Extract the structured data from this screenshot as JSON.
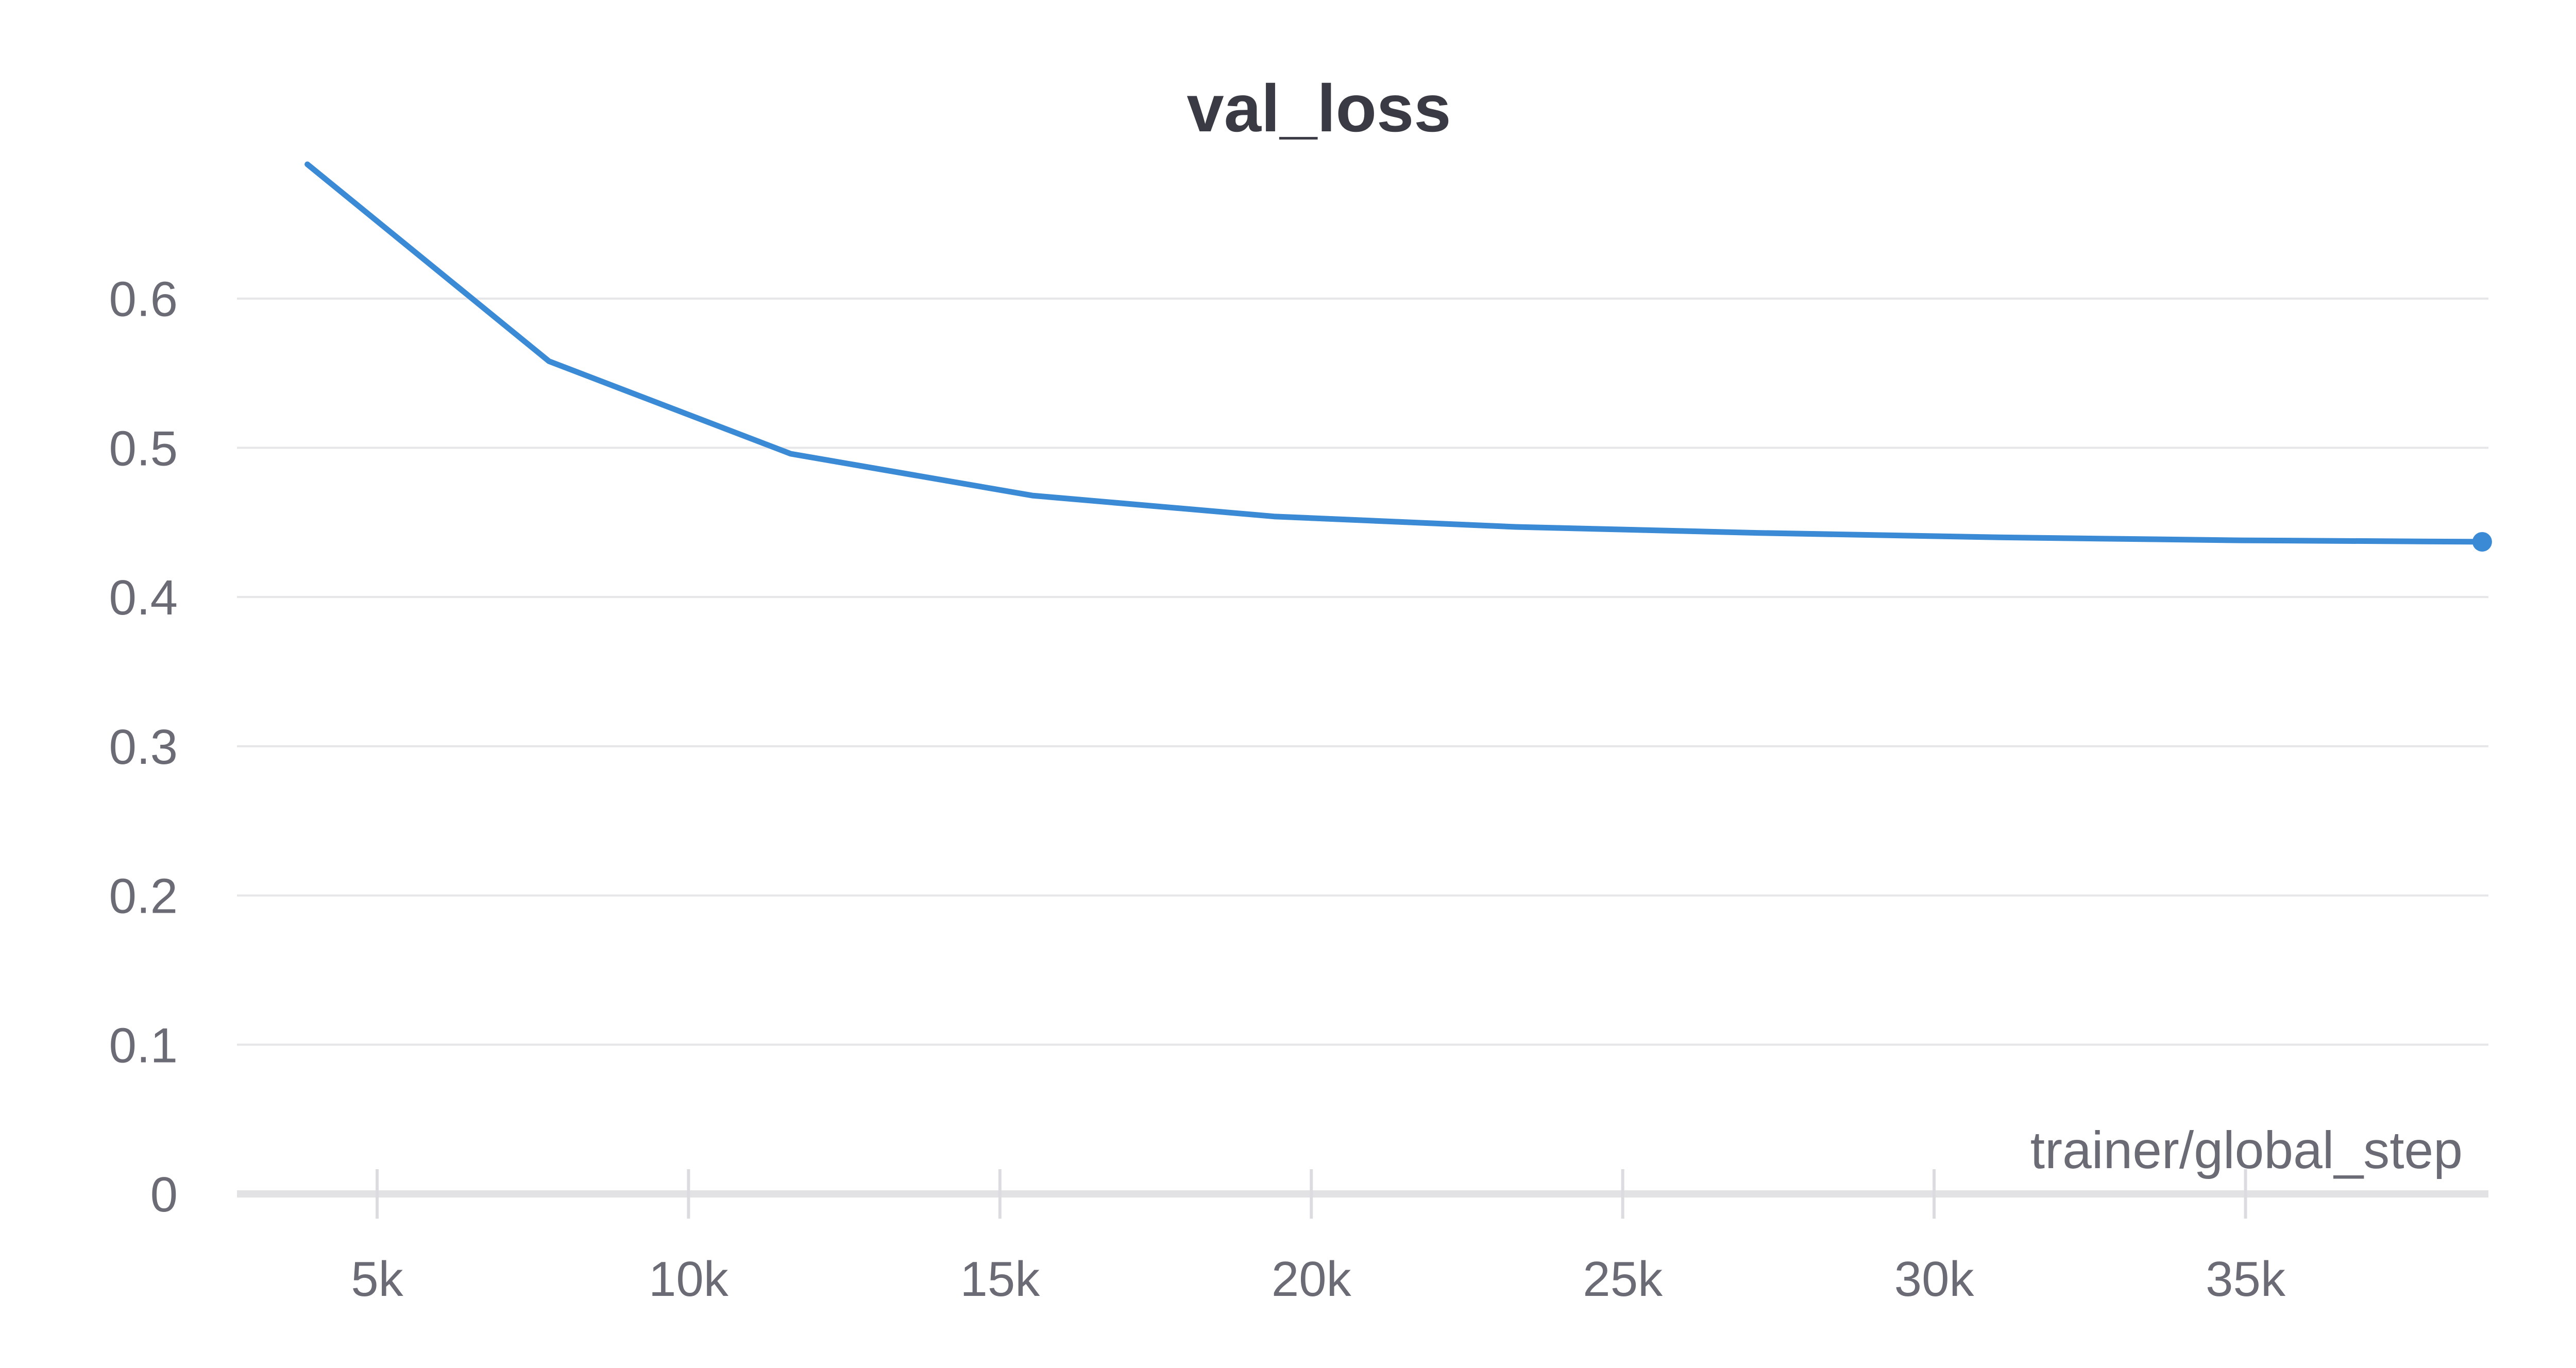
{
  "chart_data": {
    "type": "line",
    "title": "val_loss",
    "xlabel": "trainer/global_step",
    "ylabel": "",
    "xlim": [
      2750,
      38900
    ],
    "ylim": [
      0,
      0.7
    ],
    "grid": true,
    "x_ticks": [
      5000,
      10000,
      15000,
      20000,
      25000,
      30000,
      35000
    ],
    "x_tick_labels": [
      "5k",
      "10k",
      "15k",
      "20k",
      "25k",
      "30k",
      "35k"
    ],
    "y_ticks": [
      0,
      0.1,
      0.2,
      0.3,
      0.4,
      0.5,
      0.6
    ],
    "y_tick_labels": [
      "0",
      "0.1",
      "0.2",
      "0.3",
      "0.4",
      "0.5",
      "0.6"
    ],
    "series": [
      {
        "color": "#3b8ad6",
        "x": [
          3880,
          7760,
          11640,
          15520,
          19400,
          23280,
          27160,
          31040,
          34920,
          38800
        ],
        "y": [
          0.69,
          0.558,
          0.496,
          0.468,
          0.454,
          0.447,
          0.443,
          0.44,
          0.438,
          0.437
        ]
      }
    ]
  }
}
